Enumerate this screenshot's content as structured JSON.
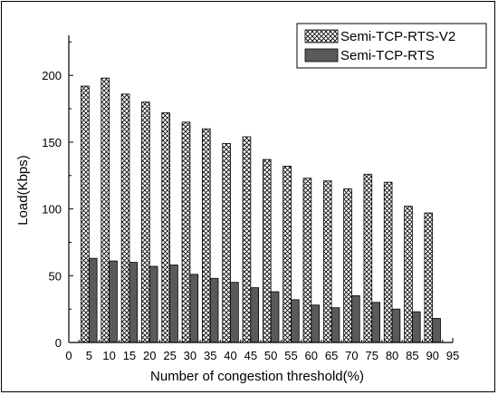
{
  "chart_data": {
    "type": "bar",
    "title": "",
    "xlabel": "Number of congestion threshold(%)",
    "ylabel": "Load(Kbps)",
    "xlim": [
      0,
      95
    ],
    "ylim": [
      0,
      230
    ],
    "x_ticks": [
      0,
      5,
      10,
      15,
      20,
      25,
      30,
      35,
      40,
      45,
      50,
      55,
      60,
      65,
      70,
      75,
      80,
      85,
      90,
      95
    ],
    "y_ticks": [
      0,
      50,
      100,
      150,
      200
    ],
    "categories": [
      5,
      10,
      15,
      20,
      25,
      30,
      35,
      40,
      45,
      50,
      55,
      60,
      65,
      70,
      75,
      80,
      85,
      90
    ],
    "series": [
      {
        "name": "Semi-TCP-RTS-V2",
        "pattern": "crosshatch",
        "color": "#ffffff",
        "values": [
          192,
          198,
          186,
          180,
          172,
          165,
          160,
          149,
          154,
          137,
          132,
          123,
          121,
          115,
          126,
          120,
          102,
          97
        ]
      },
      {
        "name": "Semi-TCP-RTS",
        "pattern": "solid",
        "color": "#5a5a5a",
        "values": [
          63,
          61,
          60,
          57,
          58,
          51,
          48,
          45,
          41,
          38,
          32,
          28,
          26,
          35,
          30,
          25,
          23,
          18
        ]
      }
    ],
    "legend": "top-right",
    "grid": false
  }
}
